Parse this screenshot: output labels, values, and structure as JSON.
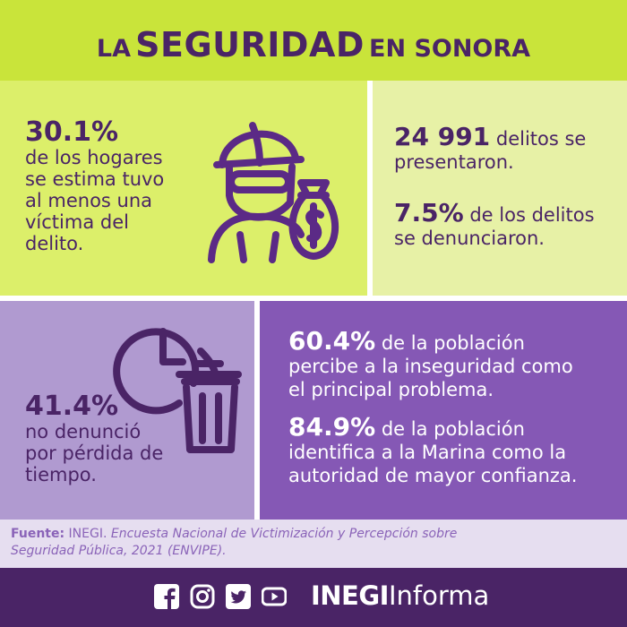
{
  "header": {
    "title_prefix": "LA",
    "title_main": "SEGURIDAD",
    "title_suffix": "EN SONORA"
  },
  "panels": {
    "households": {
      "value": "30.1%",
      "lines": [
        "de los hogares",
        "se estima tuvo",
        "al menos una",
        "víctima del",
        "delito."
      ],
      "icon": "thief-with-money-bag-icon"
    },
    "crimes": {
      "count_value": "24 991",
      "count_text_1": "delitos se",
      "count_text_2": "presentaron.",
      "reported_value": "7.5%",
      "reported_text_1": "de los delitos",
      "reported_text_2": "se denunciaron."
    },
    "time_lost": {
      "value": "41.4%",
      "lines": [
        "no denunció",
        "por pérdida de",
        "tiempo."
      ],
      "icon": "clock-and-trash-icon"
    },
    "perception": {
      "insecurity_value": "60.4%",
      "insecurity_text_1": "de la población",
      "insecurity_text_2": "percibe a la inseguridad como",
      "insecurity_text_3": "el principal problema.",
      "navy_value": "84.9%",
      "navy_text_1": "de la población",
      "navy_text_2": "identifica a la Marina como la",
      "navy_text_3": "autoridad de mayor confianza."
    }
  },
  "source": {
    "label": "Fuente:",
    "org": " INEGI. ",
    "doc_line_1": "Encuesta Nacional de Victimización y Percepción sobre",
    "doc_line_2": "Seguridad Pública, 2021 (ENVIPE)."
  },
  "footer": {
    "social_icons": [
      "facebook-icon",
      "instagram-icon",
      "twitter-icon",
      "youtube-icon"
    ],
    "brand_bold": "INEGI",
    "brand_regular": "Informa"
  },
  "colors": {
    "purple_dark": "#4a2466",
    "header_green": "#c9e43a",
    "panel_green": "#dcef6a",
    "panel_pale_green": "#e7f1a6",
    "panel_lavender": "#b09ad0",
    "panel_purple": "#8558b5",
    "source_bg": "#e6def0"
  }
}
